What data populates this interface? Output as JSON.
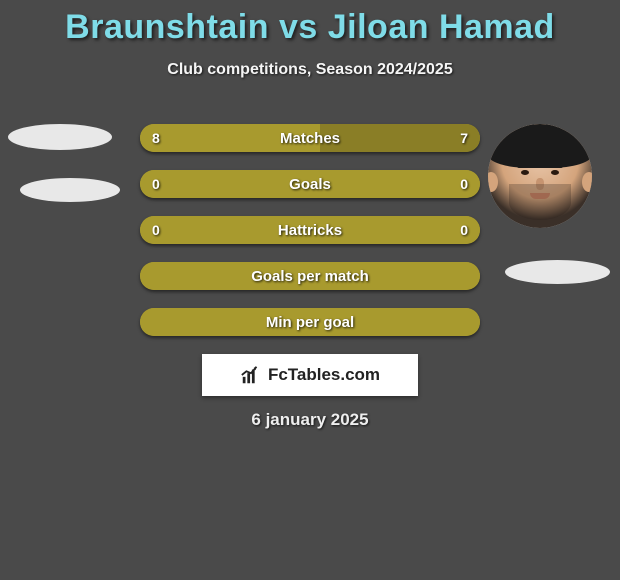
{
  "title": {
    "player1": "Braunshtain",
    "vs": "vs",
    "player2": "Jiloan Hamad"
  },
  "subtitle": "Club competitions, Season 2024/2025",
  "colors": {
    "title": "#7fdce8",
    "bar_base": "#a89a2e",
    "bar_accent": "#c9b846",
    "bar_dark": "#8a7e26",
    "background": "#4a4a4a"
  },
  "bars": [
    {
      "label": "Matches",
      "left": "8",
      "right": "7",
      "left_pct": 53,
      "right_pct": 47,
      "left_color": "#a89a2e",
      "right_color": "#8a7e26"
    },
    {
      "label": "Goals",
      "left": "0",
      "right": "0",
      "left_pct": 50,
      "right_pct": 50,
      "left_color": "#a89a2e",
      "right_color": "#a89a2e"
    },
    {
      "label": "Hattricks",
      "left": "0",
      "right": "0",
      "left_pct": 50,
      "right_pct": 50,
      "left_color": "#a89a2e",
      "right_color": "#a89a2e"
    },
    {
      "label": "Goals per match",
      "left": "",
      "right": "",
      "left_pct": 100,
      "right_pct": 0,
      "left_color": "#a89a2e",
      "right_color": "#a89a2e"
    },
    {
      "label": "Min per goal",
      "left": "",
      "right": "",
      "left_pct": 100,
      "right_pct": 0,
      "left_color": "#a89a2e",
      "right_color": "#a89a2e"
    }
  ],
  "logo_text": "FcTables.com",
  "date": "6 january 2025"
}
